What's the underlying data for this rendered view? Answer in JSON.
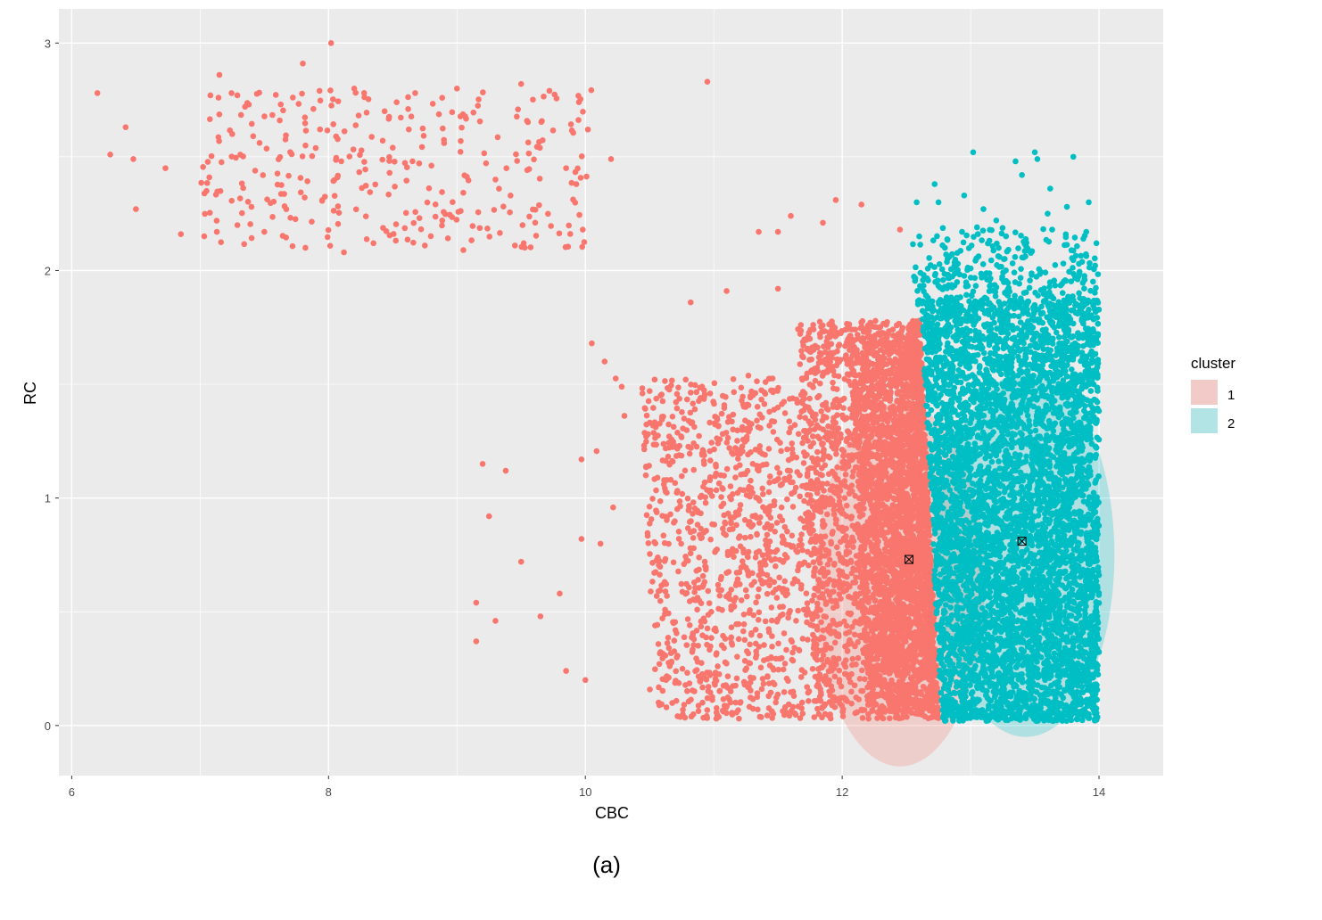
{
  "caption": "(a)",
  "chart_data": {
    "type": "scatter",
    "xlabel": "CBC",
    "ylabel": "RC",
    "xlim": [
      5.9,
      14.5
    ],
    "ylim": [
      -0.22,
      3.15
    ],
    "x_ticks": [
      6,
      8,
      10,
      12,
      14
    ],
    "y_ticks": [
      0,
      1,
      2,
      3
    ],
    "grid": true,
    "background": "#ebebeb",
    "legend": {
      "title": "cluster",
      "placement": "right",
      "entries": [
        {
          "label": "1",
          "color": "#f8766d",
          "fill": "#f2cbc8"
        },
        {
          "label": "2",
          "color": "#00bfc4",
          "fill": "#b2e3e5"
        }
      ]
    },
    "series": [
      {
        "name": "1",
        "color": "#f8766d",
        "centroid": [
          12.52,
          0.73
        ],
        "ellipse": {
          "cx": 12.45,
          "cy": 0.62,
          "rx": 0.66,
          "ry": 0.8
        },
        "dense_region": {
          "x_range": [
            11.6,
            12.8
          ],
          "y_range": [
            0.03,
            1.85
          ]
        },
        "points_sample": [
          [
            6.2,
            2.78
          ],
          [
            6.3,
            2.51
          ],
          [
            6.42,
            2.63
          ],
          [
            6.48,
            2.49
          ],
          [
            6.5,
            2.27
          ],
          [
            6.73,
            2.45
          ],
          [
            6.85,
            2.16
          ],
          [
            7.05,
            2.35
          ],
          [
            7.08,
            2.77
          ],
          [
            7.13,
            2.17
          ],
          [
            7.15,
            2.86
          ],
          [
            7.25,
            2.6
          ],
          [
            7.35,
            2.72
          ],
          [
            7.4,
            2.28
          ],
          [
            7.5,
            2.17
          ],
          [
            7.62,
            2.66
          ],
          [
            7.8,
            2.91
          ],
          [
            7.82,
            2.1
          ],
          [
            7.93,
            2.79
          ],
          [
            8.02,
            3.0
          ],
          [
            8.12,
            2.08
          ],
          [
            8.2,
            2.8
          ],
          [
            8.35,
            2.12
          ],
          [
            8.5,
            2.54
          ],
          [
            8.62,
            2.71
          ],
          [
            8.75,
            2.11
          ],
          [
            8.9,
            2.56
          ],
          [
            9.0,
            2.8
          ],
          [
            9.05,
            2.09
          ],
          [
            9.3,
            2.4
          ],
          [
            9.5,
            2.82
          ],
          [
            9.52,
            2.12
          ],
          [
            9.72,
            2.79
          ],
          [
            9.85,
            2.45
          ],
          [
            9.95,
            2.74
          ],
          [
            9.98,
            2.18
          ],
          [
            10.02,
            2.62
          ],
          [
            10.2,
            2.49
          ],
          [
            10.95,
            2.83
          ],
          [
            9.2,
            1.15
          ],
          [
            9.38,
            1.12
          ],
          [
            9.25,
            0.92
          ],
          [
            9.5,
            0.72
          ],
          [
            9.15,
            0.54
          ],
          [
            9.15,
            0.37
          ],
          [
            9.3,
            0.46
          ],
          [
            9.65,
            0.48
          ],
          [
            9.8,
            0.58
          ],
          [
            9.85,
            0.24
          ],
          [
            9.97,
            1.17
          ],
          [
            9.97,
            0.82
          ],
          [
            10.05,
            1.68
          ],
          [
            10.15,
            1.6
          ],
          [
            10.0,
            0.2
          ],
          [
            11.35,
            2.17
          ],
          [
            11.5,
            2.17
          ],
          [
            11.6,
            2.24
          ],
          [
            11.85,
            2.21
          ],
          [
            11.95,
            2.31
          ],
          [
            12.15,
            2.29
          ],
          [
            12.45,
            2.18
          ],
          [
            11.1,
            1.91
          ],
          [
            10.82,
            1.86
          ],
          [
            11.5,
            1.92
          ]
        ]
      },
      {
        "name": "2",
        "color": "#00bfc4",
        "centroid": [
          13.4,
          0.81
        ],
        "ellipse": {
          "cx": 13.43,
          "cy": 0.75,
          "rx": 0.69,
          "ry": 0.8
        },
        "dense_region": {
          "x_range": [
            12.55,
            14.0
          ],
          "y_range": [
            0.02,
            2.2
          ]
        },
        "points_sample": [
          [
            13.02,
            2.52
          ],
          [
            13.35,
            2.48
          ],
          [
            13.5,
            2.52
          ],
          [
            13.8,
            2.5
          ],
          [
            13.52,
            2.49
          ],
          [
            12.72,
            2.38
          ],
          [
            12.75,
            2.3
          ],
          [
            12.58,
            2.3
          ],
          [
            12.95,
            2.33
          ],
          [
            13.1,
            2.27
          ],
          [
            13.4,
            2.42
          ],
          [
            13.62,
            2.36
          ],
          [
            13.75,
            2.28
          ],
          [
            13.92,
            2.3
          ],
          [
            13.98,
            2.12
          ],
          [
            13.2,
            2.22
          ],
          [
            13.6,
            2.25
          ],
          [
            12.6,
            2.15
          ],
          [
            12.8,
            2.1
          ],
          [
            13.05,
            2.19
          ]
        ]
      }
    ]
  }
}
